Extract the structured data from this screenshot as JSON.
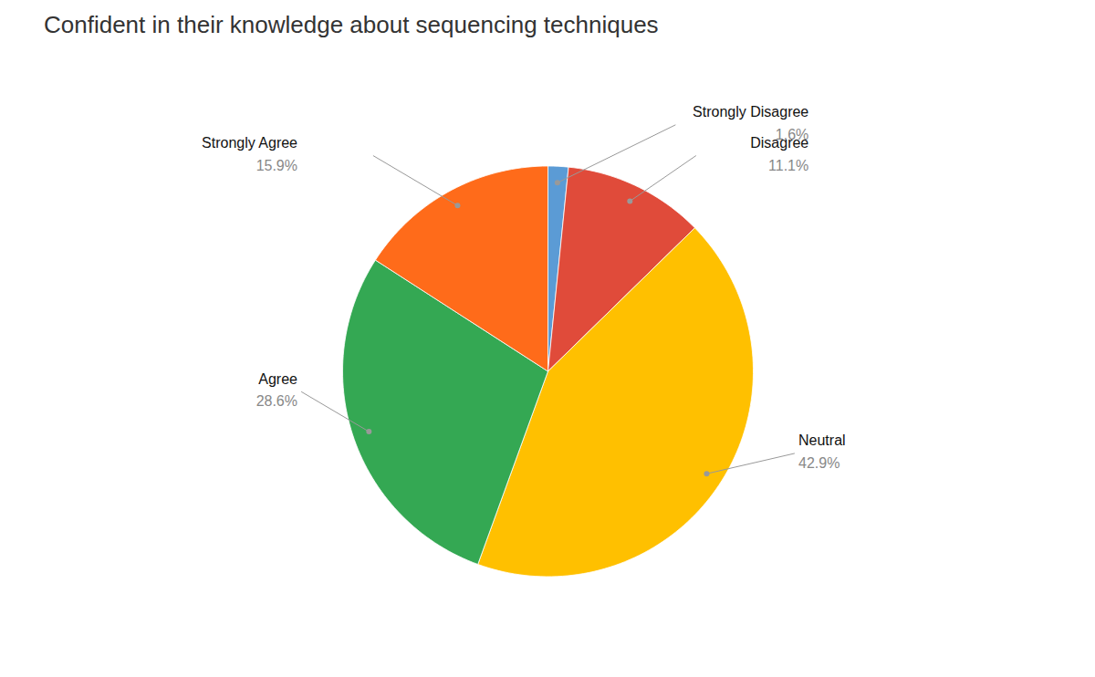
{
  "chart_data": {
    "type": "pie",
    "title": "Confident in their knowledge about sequencing techniques",
    "categories": [
      "Strongly Disagree",
      "Disagree",
      "Neutral",
      "Agree",
      "Strongly Agree"
    ],
    "values": [
      1.6,
      11.1,
      42.9,
      28.6,
      15.9
    ],
    "value_labels": [
      "1.6%",
      "11.1%",
      "42.9%",
      "28.6%",
      "15.9%"
    ],
    "colors": [
      "#5B9BD5",
      "#E04B3A",
      "#FFC000",
      "#34A853",
      "#FF6B1A"
    ],
    "data_labels": true
  }
}
